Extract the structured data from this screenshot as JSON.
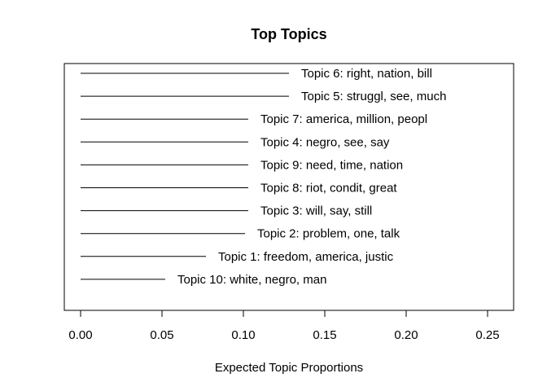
{
  "chart_data": {
    "type": "bar",
    "orientation": "horizontal",
    "title": "Top Topics",
    "xlabel": "Expected Topic Proportions",
    "ylabel": "",
    "xlim": [
      0.0,
      0.25
    ],
    "xticks": [
      "0.00",
      "0.05",
      "0.10",
      "0.15",
      "0.20",
      "0.25"
    ],
    "grid": false,
    "bars": [
      {
        "label": "Topic 6: right, nation, bill",
        "value": 0.128
      },
      {
        "label": "Topic 5: struggl, see, much",
        "value": 0.128
      },
      {
        "label": "Topic 7: america, million, peopl",
        "value": 0.103
      },
      {
        "label": "Topic 4: negro, see, say",
        "value": 0.103
      },
      {
        "label": "Topic 9: need, time, nation",
        "value": 0.103
      },
      {
        "label": "Topic 8: riot, condit, great",
        "value": 0.103
      },
      {
        "label": "Topic 3: will, say, still",
        "value": 0.103
      },
      {
        "label": "Topic 2: problem, one, talk",
        "value": 0.101
      },
      {
        "label": "Topic 1: freedom, america, justic",
        "value": 0.077
      },
      {
        "label": "Topic 10: white, negro, man",
        "value": 0.052
      }
    ]
  }
}
